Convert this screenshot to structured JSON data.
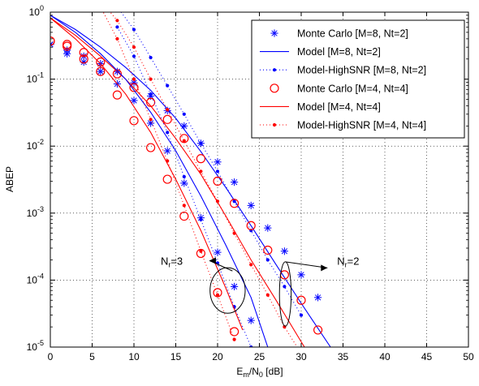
{
  "chart_data": {
    "type": "line",
    "title": "",
    "xlabel": "E_m/N_0 [dB]",
    "xlabel_parts": {
      "main": "E",
      "sub1": "m",
      "mid": "/N",
      "sub2": "0",
      "tail": " [dB]"
    },
    "ylabel": "ABEP",
    "xlim": [
      0,
      50
    ],
    "ylim_log10": [
      -5,
      0
    ],
    "yscale": "log",
    "grid": true,
    "legend_position": "top-right",
    "x_ticks": [
      "0",
      "5",
      "10",
      "15",
      "20",
      "25",
      "30",
      "35",
      "40",
      "45",
      "50"
    ],
    "y_ticks": [
      {
        "base": "10",
        "exp": "0"
      },
      {
        "base": "10",
        "exp": "-1"
      },
      {
        "base": "10",
        "exp": "-2"
      },
      {
        "base": "10",
        "exp": "-3"
      },
      {
        "base": "10",
        "exp": "-4"
      },
      {
        "base": "10",
        "exp": "-5"
      }
    ],
    "series": [
      {
        "name": "Monte Carlo [M=8, Nt=2]",
        "style": "marker",
        "marker": "asterisk",
        "color": "#0000ff",
        "x": [
          0,
          2,
          4,
          6,
          8,
          10,
          12,
          14,
          16,
          18,
          20,
          22,
          24,
          26,
          28,
          30,
          32
        ],
        "y": [
          0.33,
          0.27,
          0.22,
          0.17,
          0.13,
          0.088,
          0.056,
          0.034,
          0.02,
          0.011,
          0.0058,
          0.0029,
          0.0013,
          0.0006,
          0.00027,
          0.00012,
          5.5e-05
        ]
      },
      {
        "name": "Model [M=8, Nt=2]",
        "style": "line",
        "color": "#0000ff",
        "x": [
          0,
          3,
          6,
          9,
          12,
          15,
          18,
          21,
          24,
          27,
          30,
          33.5
        ],
        "y": [
          0.9,
          0.55,
          0.3,
          0.15,
          0.068,
          0.026,
          0.0083,
          0.0024,
          0.00065,
          0.00017,
          4.5e-05,
          1e-05
        ]
      },
      {
        "name": "Model-HighSNR [M=8, Nt=2]",
        "style": "dotted",
        "marker": "dot",
        "color": "#0000ff",
        "x": [
          8,
          10,
          12,
          14,
          16,
          18,
          20,
          22,
          24,
          26,
          28,
          30
        ],
        "y": [
          1.2,
          0.55,
          0.21,
          0.08,
          0.03,
          0.011,
          0.0042,
          0.0015,
          0.00055,
          0.0002,
          8e-05,
          3e-05
        ]
      },
      {
        "name": "Monte Carlo [M=4, Nt=4]",
        "style": "marker",
        "marker": "circle",
        "color": "#ff0000",
        "x": [
          0,
          2,
          4,
          6,
          8,
          10,
          12,
          14,
          16,
          18,
          20,
          22,
          24,
          26,
          28,
          30,
          32
        ],
        "y": [
          0.37,
          0.33,
          0.25,
          0.18,
          0.12,
          0.075,
          0.045,
          0.025,
          0.013,
          0.0065,
          0.003,
          0.0014,
          0.00065,
          0.00028,
          0.00012,
          5e-05,
          1.8e-05
        ]
      },
      {
        "name": "Model [M=4, Nt=4]",
        "style": "line",
        "color": "#ff0000",
        "x": [
          0,
          3,
          6,
          9,
          12,
          15,
          18,
          21,
          24,
          27,
          30,
          33
        ],
        "y": [
          0.82,
          0.45,
          0.22,
          0.1,
          0.04,
          0.013,
          0.0038,
          0.0009,
          0.0002,
          5e-05,
          1.2e-05,
          3e-06
        ]
      },
      {
        "name": "Model-HighSNR [M=4, Nt=4]",
        "style": "dotted",
        "marker": "dot",
        "color": "#ff0000",
        "x": [
          6,
          8,
          10,
          12,
          14,
          16,
          18,
          20,
          22,
          24,
          26,
          28,
          30,
          32
        ],
        "y": [
          1.5,
          0.75,
          0.3,
          0.1,
          0.035,
          0.012,
          0.0042,
          0.0015,
          0.0005,
          0.00017,
          6e-05,
          2e-05,
          8e-06,
          3e-06
        ]
      },
      {
        "name": "",
        "style": "marker",
        "marker": "asterisk",
        "color": "#0000ff",
        "x": [
          0,
          2,
          4,
          6,
          8,
          10,
          12,
          14,
          16,
          18,
          20,
          22,
          24
        ],
        "y": [
          0.33,
          0.24,
          0.18,
          0.13,
          0.085,
          0.048,
          0.022,
          0.0085,
          0.0028,
          0.00085,
          0.00026,
          8e-05,
          2.5e-05
        ]
      },
      {
        "name": "",
        "style": "line",
        "color": "#0000ff",
        "x": [
          0,
          3,
          6,
          9,
          12,
          15,
          18,
          21,
          24,
          26
        ],
        "y": [
          0.9,
          0.5,
          0.24,
          0.1,
          0.032,
          0.0085,
          0.0018,
          0.00033,
          5.5e-05,
          1e-05
        ]
      },
      {
        "name": "",
        "style": "dotted",
        "marker": "dot",
        "color": "#0000ff",
        "x": [
          8,
          10,
          12,
          14,
          16,
          18,
          20,
          22,
          24
        ],
        "y": [
          0.6,
          0.22,
          0.06,
          0.016,
          0.0035,
          0.0008,
          0.00018,
          4e-05,
          1e-05
        ]
      },
      {
        "name": "",
        "style": "marker",
        "marker": "circle",
        "color": "#ff0000",
        "x": [
          0,
          2,
          4,
          6,
          8,
          10,
          12,
          14,
          16,
          18,
          20,
          22
        ],
        "y": [
          0.37,
          0.31,
          0.2,
          0.13,
          0.058,
          0.024,
          0.0095,
          0.0032,
          0.0009,
          0.00025,
          6.5e-05,
          1.7e-05
        ]
      },
      {
        "name": "",
        "style": "line",
        "color": "#ff0000",
        "x": [
          0,
          3,
          6,
          9,
          12,
          15,
          18,
          21,
          23
        ],
        "y": [
          0.82,
          0.4,
          0.17,
          0.06,
          0.016,
          0.0032,
          0.00055,
          7.5e-05,
          1.8e-05
        ]
      },
      {
        "name": "",
        "style": "dotted",
        "marker": "dot",
        "color": "#ff0000",
        "x": [
          6,
          8,
          10,
          12,
          14,
          16,
          18,
          20,
          22
        ],
        "y": [
          1.2,
          0.4,
          0.1,
          0.025,
          0.006,
          0.0013,
          0.00027,
          6e-05,
          1.3e-05
        ]
      }
    ],
    "annotations": [
      {
        "text_main": "N",
        "text_sub": "r",
        "text_tail": "=3",
        "x": 13.2,
        "y": 0.00017
      },
      {
        "text_main": "N",
        "text_sub": "r",
        "text_tail": "=2",
        "x": 34.3,
        "y": 0.00017
      }
    ],
    "ellipses": [
      {
        "cx": 21.2,
        "cy": 7e-05,
        "rx_data": 2.1,
        "ry_decades": 0.34
      },
      {
        "cx": 28.1,
        "cy": 6.2e-05,
        "rx_data": 0.7,
        "ry_decades": 0.48
      }
    ]
  }
}
